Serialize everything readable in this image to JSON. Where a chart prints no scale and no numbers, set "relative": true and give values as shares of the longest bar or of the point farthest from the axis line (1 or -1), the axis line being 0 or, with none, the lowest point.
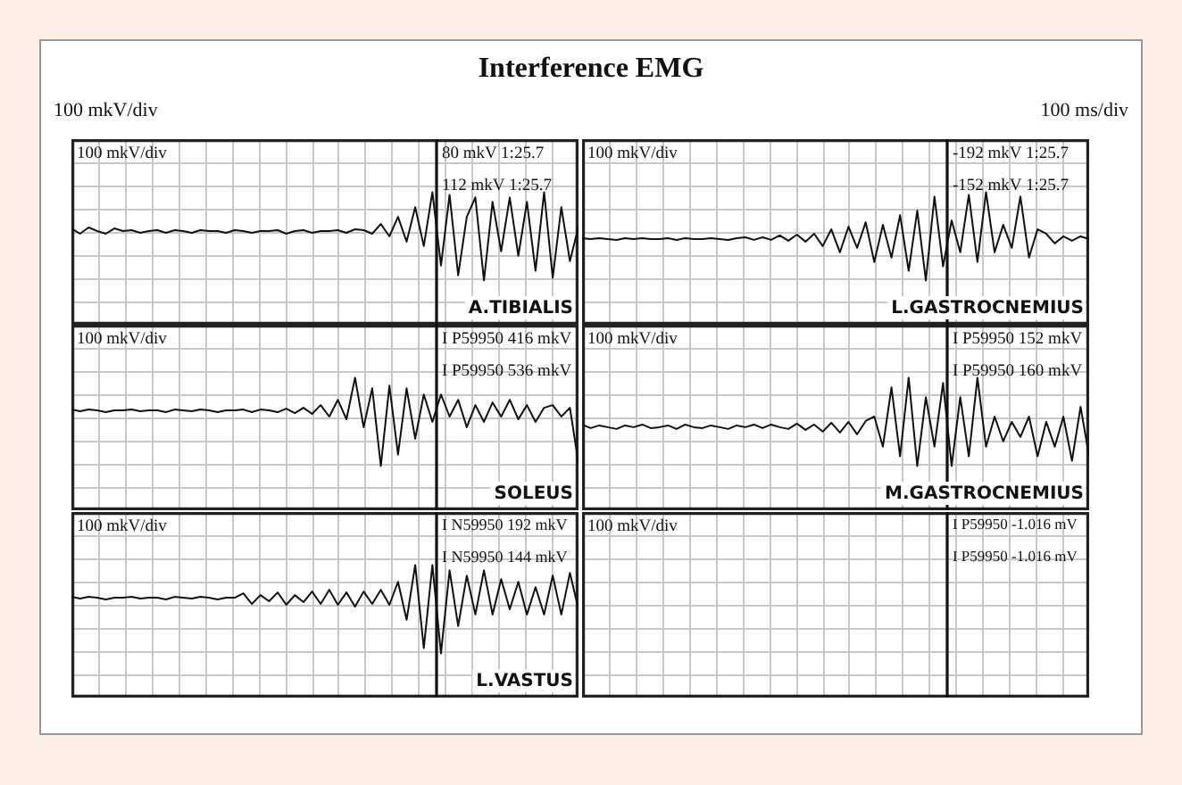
{
  "chart_data": [
    {
      "type": "line",
      "title": "A.TIBIALIS",
      "relative": true,
      "grid": true,
      "color": "#111111",
      "categories": [
        null,
        null,
        null,
        null,
        null,
        null,
        null,
        null,
        null,
        null,
        null,
        null,
        null,
        null,
        null,
        null,
        null,
        null,
        null,
        null,
        null,
        null,
        null,
        null,
        null,
        null,
        null,
        null,
        null,
        null,
        null,
        null,
        null,
        null,
        null,
        null,
        null,
        null,
        null,
        null,
        null,
        null,
        null,
        null,
        null,
        null,
        null,
        null,
        null,
        null,
        null,
        null,
        null,
        null,
        null,
        null,
        null,
        null,
        null,
        null
      ],
      "values": [
        0.59,
        0.53,
        0.6,
        0.56,
        0.53,
        0.59,
        0.56,
        0.57,
        0.54,
        0.56,
        0.57,
        0.54,
        0.57,
        0.56,
        0.54,
        0.57,
        0.56,
        0.56,
        0.54,
        0.57,
        0.56,
        0.54,
        0.56,
        0.56,
        0.57,
        0.53,
        0.56,
        0.57,
        0.54,
        0.56,
        0.56,
        0.57,
        0.54,
        0.58,
        0.57,
        0.53,
        0.64,
        0.5,
        0.72,
        0.44,
        0.83,
        0.39,
        1,
        0.17,
        0.97,
        0.06,
        0.72,
        0.94,
        0,
        0.89,
        0.33,
        0.94,
        0.28,
        0.89,
        0.11,
        1,
        0.03,
        0.83,
        0.22,
        0.61
      ],
      "annotations": [
        "100 mkV/div",
        "80 mkV 1:25.7",
        "112 mkV 1:25.7",
        "Interference EMG",
        "100 mkV/div",
        "100 ms/div"
      ]
    },
    {
      "type": "line",
      "title": "L.GASTROCNEMIUS",
      "relative": true,
      "grid": true,
      "color": "#111111",
      "categories": [
        null,
        null,
        null,
        null,
        null,
        null,
        null,
        null,
        null,
        null,
        null,
        null,
        null,
        null,
        null,
        null,
        null,
        null,
        null,
        null,
        null,
        null,
        null,
        null,
        null,
        null,
        null,
        null,
        null,
        null,
        null,
        null,
        null,
        null,
        null,
        null,
        null,
        null,
        null,
        null,
        null,
        null,
        null,
        null,
        null,
        null,
        null,
        null,
        null,
        null,
        null,
        null,
        null,
        null,
        null,
        null,
        null,
        null,
        null,
        null
      ],
      "values": [
        0.48,
        0.47,
        0.48,
        0.47,
        0.46,
        0.48,
        0.47,
        0.48,
        0.47,
        0.47,
        0.48,
        0.46,
        0.48,
        0.47,
        0.47,
        0.48,
        0.47,
        0.46,
        0.48,
        0.49,
        0.46,
        0.49,
        0.46,
        0.51,
        0.45,
        0.52,
        0.44,
        0.53,
        0.39,
        0.58,
        0.32,
        0.61,
        0.37,
        0.66,
        0.21,
        0.63,
        0.26,
        0.74,
        0.11,
        0.79,
        0,
        0.95,
        0.16,
        0.68,
        0.32,
        0.97,
        0.21,
        1,
        0.32,
        0.63,
        0.37,
        0.95,
        0.26,
        0.58,
        0.53,
        0.42,
        0.5,
        0.45,
        0.5,
        0.47
      ],
      "annotations": [
        "100 mkV/div",
        "-192 mkV 1:25.7",
        "-152 mkV 1:25.7"
      ]
    },
    {
      "type": "line",
      "title": "SOLEUS",
      "relative": true,
      "grid": true,
      "color": "#111111",
      "categories": [
        null,
        null,
        null,
        null,
        null,
        null,
        null,
        null,
        null,
        null,
        null,
        null,
        null,
        null,
        null,
        null,
        null,
        null,
        null,
        null,
        null,
        null,
        null,
        null,
        null,
        null,
        null,
        null,
        null,
        null,
        null,
        null,
        null,
        null,
        null,
        null,
        null,
        null,
        null,
        null,
        null,
        null,
        null,
        null,
        null,
        null,
        null,
        null,
        null,
        null,
        null,
        null,
        null,
        null,
        null,
        null,
        null,
        null,
        null,
        null
      ],
      "values": [
        0.64,
        0.62,
        0.64,
        0.63,
        0.61,
        0.63,
        0.63,
        0.64,
        0.62,
        0.63,
        0.63,
        0.61,
        0.64,
        0.63,
        0.62,
        0.64,
        0.63,
        0.61,
        0.63,
        0.63,
        0.64,
        0.61,
        0.64,
        0.63,
        0.61,
        0.65,
        0.6,
        0.66,
        0.59,
        0.69,
        0.56,
        0.75,
        0.53,
        1,
        0.44,
        0.88,
        0,
        0.91,
        0.13,
        0.88,
        0.31,
        0.81,
        0.5,
        0.81,
        0.56,
        0.75,
        0.44,
        0.69,
        0.5,
        0.72,
        0.56,
        0.75,
        0.53,
        0.69,
        0.5,
        0.66,
        0.69,
        0.56,
        0.66,
        0.03
      ],
      "annotations": [
        "100 mkV/div",
        "I P59950 416 mkV",
        "I P59950 536 mkV"
      ]
    },
    {
      "type": "line",
      "title": "M.GASTROCNEMIUS",
      "relative": true,
      "grid": true,
      "color": "#111111",
      "categories": [
        null,
        null,
        null,
        null,
        null,
        null,
        null,
        null,
        null,
        null,
        null,
        null,
        null,
        null,
        null,
        null,
        null,
        null,
        null,
        null,
        null,
        null,
        null,
        null,
        null,
        null,
        null,
        null,
        null,
        null,
        null,
        null,
        null,
        null,
        null,
        null,
        null,
        null,
        null,
        null,
        null,
        null,
        null,
        null,
        null,
        null,
        null,
        null,
        null,
        null,
        null,
        null,
        null,
        null,
        null,
        null,
        null,
        null,
        null,
        null
      ],
      "values": [
        0.47,
        0.43,
        0.46,
        0.44,
        0.42,
        0.46,
        0.44,
        0.47,
        0.43,
        0.44,
        0.46,
        0.42,
        0.47,
        0.44,
        0.43,
        0.46,
        0.44,
        0.42,
        0.46,
        0.44,
        0.47,
        0.43,
        0.47,
        0.44,
        0.42,
        0.48,
        0.41,
        0.47,
        0.39,
        0.49,
        0.38,
        0.5,
        0.36,
        0.51,
        0.56,
        0.22,
        0.89,
        0.11,
        1,
        0,
        0.78,
        0.22,
        0.94,
        0,
        0.78,
        0.11,
        1,
        0.22,
        0.56,
        0.28,
        0.5,
        0.33,
        0.56,
        0.11,
        0.5,
        0.22,
        0.56,
        0.06,
        0.67,
        0.11
      ],
      "annotations": [
        "100 mkV/div",
        "I P59950 152 mkV",
        "I P59950 160 mkV"
      ]
    },
    {
      "type": "line",
      "title": "L.VASTUS",
      "relative": true,
      "grid": true,
      "color": "#111111",
      "categories": [
        null,
        null,
        null,
        null,
        null,
        null,
        null,
        null,
        null,
        null,
        null,
        null,
        null,
        null,
        null,
        null,
        null,
        null,
        null,
        null,
        null,
        null,
        null,
        null,
        null,
        null,
        null,
        null,
        null,
        null,
        null,
        null,
        null,
        null,
        null,
        null,
        null,
        null,
        null,
        null,
        null,
        null,
        null,
        null,
        null,
        null,
        null,
        null,
        null,
        null,
        null,
        null,
        null,
        null,
        null,
        null,
        null,
        null,
        null,
        null
      ],
      "values": [
        0.64,
        0.62,
        0.64,
        0.63,
        0.61,
        0.63,
        0.63,
        0.64,
        0.62,
        0.63,
        0.63,
        0.61,
        0.64,
        0.63,
        0.62,
        0.64,
        0.63,
        0.61,
        0.63,
        0.63,
        0.68,
        0.56,
        0.66,
        0.59,
        0.69,
        0.55,
        0.66,
        0.58,
        0.7,
        0.56,
        0.72,
        0.55,
        0.69,
        0.53,
        0.7,
        0.56,
        0.72,
        0.55,
        0.81,
        0.38,
        1,
        0.06,
        1,
        0,
        0.94,
        0.31,
        0.88,
        0.44,
        0.94,
        0.44,
        0.84,
        0.5,
        0.81,
        0.44,
        0.75,
        0.44,
        0.88,
        0.44,
        0.91,
        0.5
      ],
      "annotations": [
        "100 mkV/div",
        "I N59950 192 mkV",
        "I N59950 144 mkV"
      ]
    },
    {
      "type": "other",
      "annotations": [
        "100 mkV/div",
        "I P59950 -1.016 mV",
        "I P59950 -1.016 mV"
      ]
    }
  ]
}
